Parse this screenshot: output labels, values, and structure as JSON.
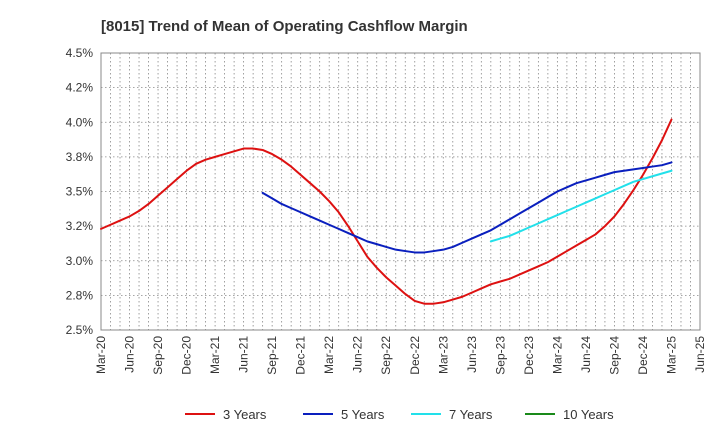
{
  "chart_data": {
    "type": "line",
    "title": "[8015]  Trend of Mean of Operating Cashflow Margin",
    "xlabel": "",
    "ylabel": "",
    "x_ticks": [
      "Mar-20",
      "Jun-20",
      "Sep-20",
      "Dec-20",
      "Mar-21",
      "Jun-21",
      "Sep-21",
      "Dec-21",
      "Mar-22",
      "Jun-22",
      "Sep-22",
      "Dec-22",
      "Mar-23",
      "Jun-23",
      "Sep-23",
      "Dec-23",
      "Mar-24",
      "Jun-24",
      "Sep-24",
      "Dec-24",
      "Mar-25",
      "Jun-25"
    ],
    "y_ticks": [
      "2.5%",
      "2.8%",
      "3.0%",
      "3.2%",
      "3.5%",
      "3.8%",
      "4.0%",
      "4.2%",
      "4.5%"
    ],
    "y_tick_values": [
      2.5,
      2.75,
      3.0,
      3.25,
      3.5,
      3.75,
      4.0,
      4.25,
      4.5
    ],
    "ylim": [
      2.5,
      4.5
    ],
    "grid": true,
    "legend_position": "bottom",
    "series": [
      {
        "name": "3 Years",
        "color": "#dd1111",
        "x": [
          "Mar-20",
          "Apr-20",
          "May-20",
          "Jun-20",
          "Jul-20",
          "Aug-20",
          "Sep-20",
          "Oct-20",
          "Nov-20",
          "Dec-20",
          "Jan-21",
          "Feb-21",
          "Mar-21",
          "Apr-21",
          "May-21",
          "Jun-21",
          "Jul-21",
          "Aug-21",
          "Sep-21",
          "Oct-21",
          "Nov-21",
          "Dec-21",
          "Jan-22",
          "Feb-22",
          "Mar-22",
          "Apr-22",
          "May-22",
          "Jun-22",
          "Jul-22",
          "Aug-22",
          "Sep-22",
          "Oct-22",
          "Nov-22",
          "Dec-22",
          "Jan-23",
          "Feb-23",
          "Mar-23",
          "Apr-23",
          "May-23",
          "Jun-23",
          "Jul-23",
          "Aug-23",
          "Sep-23",
          "Oct-23",
          "Nov-23",
          "Dec-23",
          "Jan-24",
          "Feb-24",
          "Mar-24",
          "Apr-24",
          "May-24",
          "Jun-24",
          "Jul-24",
          "Aug-24",
          "Sep-24",
          "Oct-24",
          "Nov-24",
          "Dec-24",
          "Jan-25",
          "Feb-25",
          "Mar-25"
        ],
        "values": [
          3.23,
          3.26,
          3.29,
          3.32,
          3.36,
          3.41,
          3.47,
          3.53,
          3.59,
          3.65,
          3.7,
          3.73,
          3.75,
          3.77,
          3.79,
          3.81,
          3.81,
          3.8,
          3.77,
          3.73,
          3.68,
          3.62,
          3.56,
          3.5,
          3.43,
          3.35,
          3.25,
          3.14,
          3.03,
          2.95,
          2.88,
          2.82,
          2.76,
          2.71,
          2.69,
          2.69,
          2.7,
          2.72,
          2.74,
          2.77,
          2.8,
          2.83,
          2.85,
          2.87,
          2.9,
          2.93,
          2.96,
          2.99,
          3.03,
          3.07,
          3.11,
          3.15,
          3.19,
          3.25,
          3.32,
          3.41,
          3.51,
          3.62,
          3.74,
          3.87,
          4.02
        ]
      },
      {
        "name": "5 Years",
        "color": "#0a1fbe",
        "x": [
          "Aug-21",
          "Sep-21",
          "Oct-21",
          "Nov-21",
          "Dec-21",
          "Jan-22",
          "Feb-22",
          "Mar-22",
          "Apr-22",
          "May-22",
          "Jun-22",
          "Jul-22",
          "Aug-22",
          "Sep-22",
          "Oct-22",
          "Nov-22",
          "Dec-22",
          "Jan-23",
          "Feb-23",
          "Mar-23",
          "Apr-23",
          "May-23",
          "Jun-23",
          "Jul-23",
          "Aug-23",
          "Sep-23",
          "Oct-23",
          "Nov-23",
          "Dec-23",
          "Jan-24",
          "Feb-24",
          "Mar-24",
          "Apr-24",
          "May-24",
          "Jun-24",
          "Jul-24",
          "Aug-24",
          "Sep-24",
          "Oct-24",
          "Nov-24",
          "Dec-24",
          "Jan-25",
          "Feb-25",
          "Mar-25"
        ],
        "values": [
          3.49,
          3.45,
          3.41,
          3.38,
          3.35,
          3.32,
          3.29,
          3.26,
          3.23,
          3.2,
          3.17,
          3.14,
          3.12,
          3.1,
          3.08,
          3.07,
          3.06,
          3.06,
          3.07,
          3.08,
          3.1,
          3.13,
          3.16,
          3.19,
          3.22,
          3.26,
          3.3,
          3.34,
          3.38,
          3.42,
          3.46,
          3.5,
          3.53,
          3.56,
          3.58,
          3.6,
          3.62,
          3.64,
          3.65,
          3.66,
          3.67,
          3.68,
          3.69,
          3.71
        ]
      },
      {
        "name": "7 Years",
        "color": "#22e0ea",
        "x": [
          "Aug-23",
          "Sep-23",
          "Oct-23",
          "Nov-23",
          "Dec-23",
          "Jan-24",
          "Feb-24",
          "Mar-24",
          "Apr-24",
          "May-24",
          "Jun-24",
          "Jul-24",
          "Aug-24",
          "Sep-24",
          "Oct-24",
          "Nov-24",
          "Dec-24",
          "Jan-25",
          "Feb-25",
          "Mar-25"
        ],
        "values": [
          3.14,
          3.16,
          3.18,
          3.21,
          3.24,
          3.27,
          3.3,
          3.33,
          3.36,
          3.39,
          3.42,
          3.45,
          3.48,
          3.51,
          3.54,
          3.57,
          3.59,
          3.61,
          3.63,
          3.65
        ]
      },
      {
        "name": "10 Years",
        "color": "#1a8a1a",
        "x": [],
        "values": []
      }
    ]
  }
}
